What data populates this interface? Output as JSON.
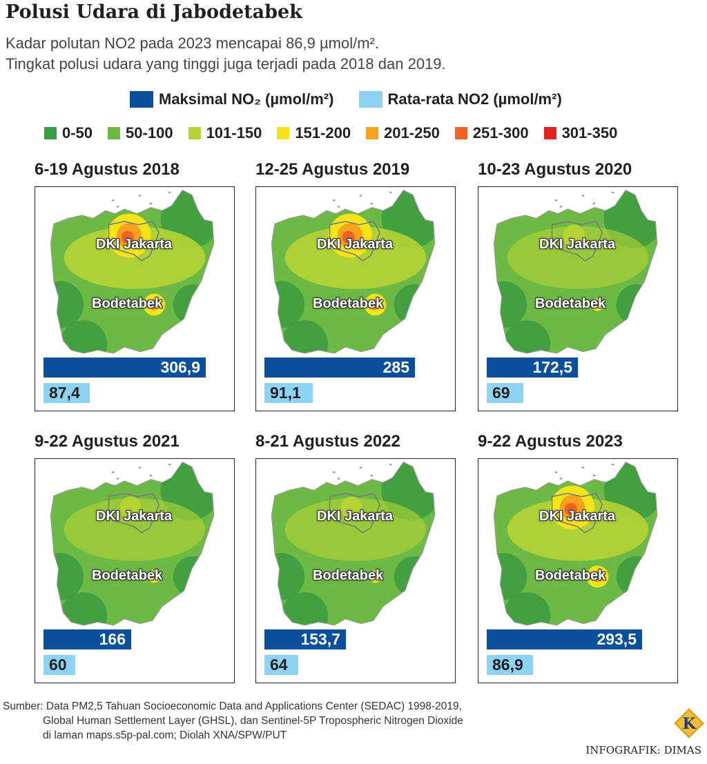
{
  "title": "Polusi Udara di Jabodetabek",
  "subtitle_line1": "Kadar polutan NO2 pada 2023 mencapai 86,9 µmol/m².",
  "subtitle_line2": "Tingkat polusi udara yang tinggi juga terjadi pada 2018 dan 2019.",
  "legend_series": [
    {
      "label": "Maksimal NO₂ (µmol/m²)",
      "color": "#0a4f9c"
    },
    {
      "label": "Rata-rata NO2 (µmol/m²)",
      "color": "#8fd3f4"
    }
  ],
  "legend_scale": [
    {
      "label": "0-50",
      "color": "#3a9a3f"
    },
    {
      "label": "50-100",
      "color": "#6cb945"
    },
    {
      "label": "101-150",
      "color": "#b5d334"
    },
    {
      "label": "151-200",
      "color": "#f4e21a"
    },
    {
      "label": "201-250",
      "color": "#f6a21d"
    },
    {
      "label": "251-300",
      "color": "#ef6223"
    },
    {
      "label": "301-350",
      "color": "#e0231f"
    }
  ],
  "map_labels": {
    "city": "DKI Jakarta",
    "region": "Bodetabek"
  },
  "chart_data": {
    "type": "bar",
    "categories": [
      "6-19 Agustus 2018",
      "12-25 Agustus 2019",
      "10-23 Agustus 2020",
      "9-22 Agustus 2021",
      "8-21 Agustus 2022",
      "9-22 Agustus 2023"
    ],
    "series": [
      {
        "name": "Maksimal NO₂ (µmol/m²)",
        "values": [
          "306,9",
          "285",
          "172,5",
          "166",
          "153,7",
          "293,5"
        ],
        "numeric": [
          306.9,
          285,
          172.5,
          166,
          153.7,
          293.5
        ]
      },
      {
        "name": "Rata-rata NO2 (µmol/m²)",
        "values": [
          "87,4",
          "91,1",
          "69",
          "60",
          "64",
          "86,9"
        ],
        "numeric": [
          87.4,
          91.1,
          69,
          60,
          64,
          86.9
        ]
      }
    ],
    "hotspot_level": [
      "high",
      "high",
      "low",
      "low",
      "low",
      "high"
    ]
  },
  "source_line1": "Sumber: Data PM2,5 Tahuan Socioeconomic Data and Applications Center (SEDAC) 1998-2019,",
  "source_line2": "Global Human Settlement Layer (GHSL), dan Sentinel-5P Tropospheric Nitrogen Dioxide",
  "source_line3": "di laman maps.s5p-pal.com; Diolah XNA/SPW/PUT",
  "credit": "INFOGRAFIK: DIMAS",
  "logo_letter": "K"
}
